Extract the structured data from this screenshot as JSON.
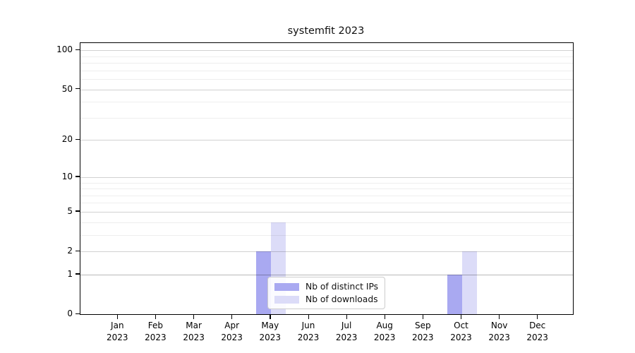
{
  "chart_data": {
    "type": "bar",
    "title": "systemfit 2023",
    "x": {
      "months": [
        "Jan",
        "Feb",
        "Mar",
        "Apr",
        "May",
        "Jun",
        "Jul",
        "Aug",
        "Sep",
        "Oct",
        "Nov",
        "Dec"
      ],
      "year": "2023"
    },
    "y_axis": {
      "scale": "log1p",
      "tick_values": [
        0,
        1,
        2,
        5,
        10,
        20,
        50,
        100
      ],
      "minor_gridlines": [
        3,
        4,
        6,
        7,
        8,
        9,
        30,
        40,
        60,
        70,
        80,
        90
      ],
      "ylim": [
        0,
        112
      ],
      "grid": "horizontal"
    },
    "series": [
      {
        "name": "Nb of distinct IPs",
        "color": "#a9a9f1",
        "values": [
          0,
          0,
          0,
          0,
          2,
          0,
          0,
          0,
          0,
          1,
          0,
          0
        ]
      },
      {
        "name": "Nb of downloads",
        "color": "#dcdcf8",
        "values": [
          0,
          0,
          0,
          0,
          4,
          0,
          0,
          0,
          0,
          2,
          0,
          0
        ]
      }
    ],
    "legend": {
      "position": "bottom-center",
      "entries": [
        "Nb of distinct IPs",
        "Nb of downloads"
      ]
    }
  }
}
